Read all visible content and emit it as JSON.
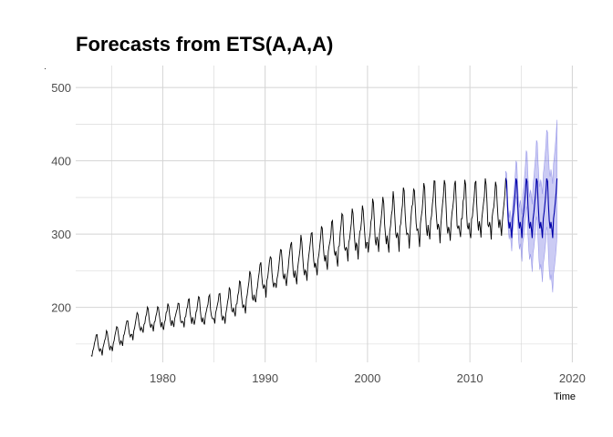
{
  "chart_data": {
    "type": "line",
    "title": "Forecasts from ETS(A,A,A)",
    "xlabel": "Time",
    "ylabel": "",
    "xlim": [
      1971.5,
      2020.5
    ],
    "ylim": [
      125,
      530
    ],
    "x_ticks": [
      1980,
      1990,
      2000,
      2010,
      2020
    ],
    "y_ticks": [
      200,
      300,
      400,
      500
    ],
    "grid": true,
    "legend": "none",
    "colors": {
      "observed": "#000000",
      "forecast_band": "#6b6be0",
      "forecast_line": "#0000aa",
      "grid": "#d4d4d4"
    },
    "observed": {
      "x_start": 1973.0,
      "x_end": 2013.5,
      "points_per_year": 12,
      "trend": [
        [
          1973,
          145
        ],
        [
          1975,
          153
        ],
        [
          1978,
          180
        ],
        [
          1980,
          185
        ],
        [
          1983,
          192
        ],
        [
          1986,
          197
        ],
        [
          1988,
          215
        ],
        [
          1990,
          240
        ],
        [
          1992,
          255
        ],
        [
          1995,
          272
        ],
        [
          1998,
          295
        ],
        [
          2000,
          305
        ],
        [
          2003,
          315
        ],
        [
          2005,
          325
        ],
        [
          2008,
          330
        ],
        [
          2010,
          328
        ],
        [
          2013.5,
          332
        ]
      ],
      "seasonal_amplitude": [
        [
          1973,
          16
        ],
        [
          1980,
          18
        ],
        [
          1990,
          28
        ],
        [
          2000,
          38
        ],
        [
          2005,
          44
        ],
        [
          2013.5,
          44
        ]
      ]
    },
    "forecast": {
      "x_start": 2013.5,
      "x_end": 2018.5,
      "points_per_year": 12,
      "mean_level": 332,
      "seasonal_amplitude": 44,
      "interval_spread_start": 10,
      "interval_spread_end": 80
    }
  }
}
